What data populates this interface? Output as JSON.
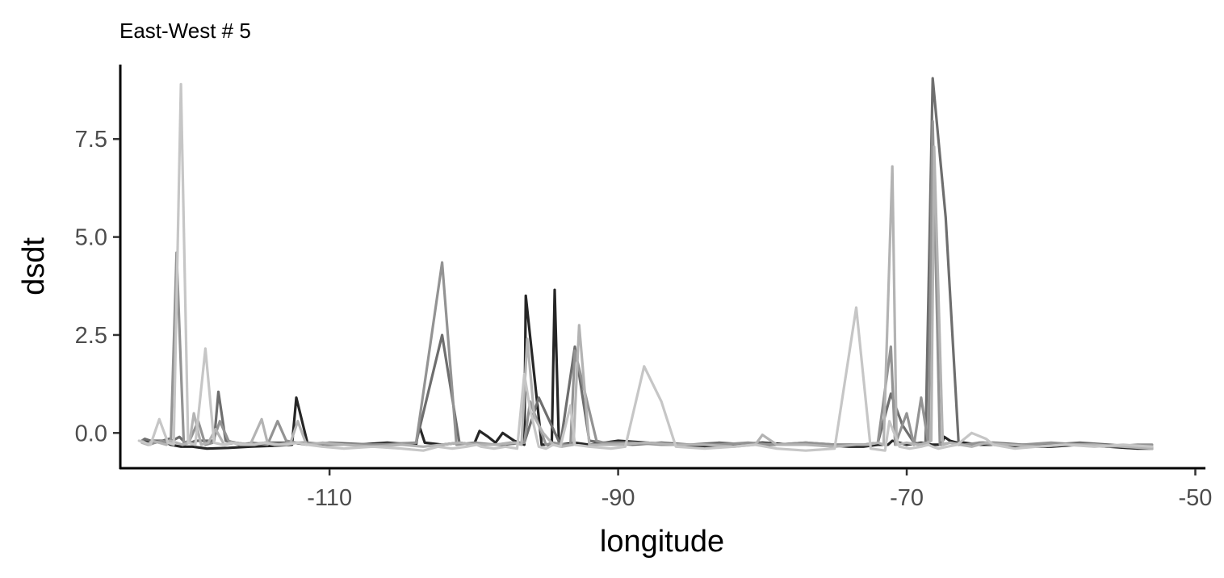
{
  "chart_data": {
    "type": "line",
    "title": "East-West # 5",
    "xlabel": "longitude",
    "ylabel": "dsdt",
    "xlim": [
      -124.5,
      -49.3
    ],
    "ylim": [
      -0.9,
      9.4
    ],
    "xticks": [
      -110,
      -90,
      -70,
      -50
    ],
    "yticks": [
      0.0,
      2.5,
      5.0,
      7.5
    ],
    "xtick_labels": [
      "-110",
      "-90",
      "-70",
      "-50"
    ],
    "ytick_labels": [
      "0.0",
      "2.5",
      "5.0",
      "7.5"
    ],
    "grid": false,
    "legend": "none",
    "series": [
      {
        "color": "#262626",
        "x": [
          -123,
          -122.5,
          -121.6,
          -121,
          -120.3,
          -119.5,
          -118.5,
          -117,
          -115.5,
          -114,
          -112.6,
          -112.3,
          -111.5,
          -110,
          -108,
          -106,
          -104,
          -103.8,
          -103.4,
          -102.2,
          -101,
          -100,
          -99.6,
          -99,
          -98.5,
          -98,
          -97.2,
          -96.5,
          -96.4,
          -95.3,
          -94.6,
          -94.4,
          -94.1,
          -93,
          -92,
          -90,
          -88,
          -86,
          -84,
          -82,
          -80,
          -78,
          -76,
          -74,
          -73,
          -72,
          -71.3,
          -71,
          -70.5,
          -70,
          -69,
          -68.2,
          -67.6,
          -67.4,
          -67,
          -66.5,
          -66,
          -65,
          -64,
          -62,
          -60,
          -58,
          -56,
          -54,
          -53
        ],
        "y": [
          -0.2,
          -0.25,
          -0.2,
          -0.3,
          -0.35,
          -0.35,
          -0.4,
          -0.38,
          -0.35,
          -0.33,
          -0.3,
          0.9,
          -0.3,
          -0.3,
          -0.3,
          -0.25,
          -0.3,
          0.2,
          -0.25,
          -0.3,
          -0.25,
          -0.3,
          0.05,
          -0.1,
          -0.25,
          0.0,
          -0.2,
          -0.3,
          3.5,
          -0.3,
          -0.3,
          3.65,
          -0.3,
          -0.25,
          -0.3,
          -0.2,
          -0.25,
          -0.3,
          -0.35,
          -0.3,
          -0.25,
          -0.3,
          -0.3,
          -0.35,
          -0.35,
          -0.3,
          -0.3,
          -0.2,
          -0.25,
          -0.3,
          -0.25,
          -0.3,
          -0.3,
          -0.1,
          -0.2,
          -0.25,
          -0.25,
          -0.3,
          -0.3,
          -0.35,
          -0.35,
          -0.3,
          -0.35,
          -0.4,
          -0.4
        ]
      },
      {
        "color": "#6e6e6e",
        "x": [
          -123,
          -122.8,
          -122.4,
          -121.6,
          -121.1,
          -120.9,
          -120.4,
          -120,
          -119.6,
          -119.3,
          -118.6,
          -118,
          -117.7,
          -117.2,
          -116.5,
          -115.5,
          -114.5,
          -113.7,
          -112.5,
          -111.5,
          -110,
          -107,
          -104,
          -102.2,
          -101,
          -100,
          -98,
          -96.5,
          -95.5,
          -94,
          -93,
          -92,
          -91,
          -89,
          -87,
          -85,
          -83,
          -81,
          -79,
          -77,
          -75,
          -73,
          -72,
          -71.1,
          -70.3,
          -69.5,
          -68.7,
          -68.2,
          -67.3,
          -66.4,
          -65.5,
          -65,
          -64,
          -62,
          -60,
          -58,
          -56,
          -54,
          -53
        ],
        "y": [
          -0.2,
          -0.15,
          -0.2,
          -0.2,
          -0.15,
          -0.2,
          -0.1,
          -0.25,
          -0.25,
          -0.2,
          -0.2,
          -0.2,
          1.05,
          -0.2,
          -0.25,
          -0.3,
          -0.25,
          -0.25,
          -0.25,
          -0.3,
          -0.25,
          -0.3,
          -0.25,
          2.5,
          -0.25,
          -0.3,
          -0.3,
          -0.25,
          0.9,
          -0.3,
          2.2,
          -0.2,
          -0.25,
          -0.3,
          -0.25,
          -0.3,
          -0.25,
          -0.3,
          -0.3,
          -0.25,
          -0.3,
          -0.3,
          -0.25,
          1.0,
          0.2,
          -0.25,
          -0.3,
          9.05,
          5.5,
          -0.3,
          -0.3,
          -0.25,
          -0.25,
          -0.3,
          -0.3,
          -0.25,
          -0.3,
          -0.35,
          -0.35
        ]
      },
      {
        "color": "#939393",
        "x": [
          -123,
          -122.5,
          -122.1,
          -121.6,
          -121.2,
          -121,
          -120.6,
          -120.1,
          -119.7,
          -119.1,
          -118.6,
          -118.1,
          -117.6,
          -117,
          -116.3,
          -115.3,
          -114.3,
          -113.6,
          -113,
          -112.3,
          -111.5,
          -110,
          -108,
          -106,
          -104,
          -102.2,
          -101.2,
          -100,
          -98.5,
          -97.5,
          -96.5,
          -96.1,
          -95,
          -94.5,
          -93.7,
          -93.3,
          -93,
          -91.5,
          -91,
          -89,
          -87,
          -85,
          -83,
          -81,
          -79,
          -77,
          -75,
          -73,
          -72,
          -71.1,
          -70.8,
          -70,
          -69.5,
          -69,
          -68.5,
          -68.2,
          -67.7,
          -67,
          -66,
          -65,
          -64,
          -62,
          -60,
          -58,
          -56,
          -54,
          -53
        ],
        "y": [
          -0.2,
          -0.3,
          -0.25,
          -0.2,
          -0.25,
          -0.2,
          4.6,
          -0.25,
          -0.2,
          0.3,
          -0.3,
          -0.25,
          0.3,
          -0.2,
          -0.3,
          -0.25,
          -0.3,
          0.3,
          -0.2,
          -0.25,
          -0.25,
          -0.3,
          -0.3,
          -0.3,
          -0.25,
          4.35,
          -0.3,
          -0.25,
          -0.3,
          -0.25,
          -0.25,
          0.8,
          -0.3,
          -0.25,
          -0.3,
          -0.3,
          2.1,
          -0.2,
          -0.25,
          -0.25,
          -0.3,
          -0.3,
          -0.3,
          -0.25,
          -0.3,
          -0.25,
          -0.3,
          -0.3,
          -0.25,
          2.2,
          -0.3,
          0.5,
          -0.3,
          0.9,
          -0.3,
          7.95,
          -0.3,
          -0.25,
          -0.3,
          -0.25,
          -0.3,
          -0.3,
          -0.25,
          -0.3,
          -0.35,
          -0.3,
          -0.3
        ]
      },
      {
        "color": "#b3b3b3",
        "x": [
          -123,
          -122.6,
          -122.3,
          -121.8,
          -121.3,
          -121.1,
          -120.6,
          -120.2,
          -119.7,
          -119.4,
          -118.9,
          -118.4,
          -117.9,
          -117.3,
          -116.5,
          -115.5,
          -114.7,
          -114.3,
          -113.5,
          -112.7,
          -112.2,
          -111.6,
          -110.5,
          -109,
          -107,
          -105,
          -103.5,
          -102.2,
          -101,
          -100,
          -98.5,
          -97.2,
          -96.7,
          -96.3,
          -95.8,
          -95.2,
          -94.5,
          -93.9,
          -93.1,
          -92.7,
          -92,
          -90,
          -88,
          -86,
          -84,
          -82,
          -80.5,
          -80,
          -79,
          -77,
          -75,
          -73.5,
          -72.7,
          -72,
          -71.6,
          -71,
          -70.7,
          -70,
          -69.2,
          -68.6,
          -68.3,
          -68.1,
          -67.5,
          -67,
          -66.3,
          -65.5,
          -64.5,
          -63,
          -61,
          -59,
          -57,
          -55,
          -53
        ],
        "y": [
          -0.25,
          -0.3,
          -0.2,
          -0.25,
          -0.3,
          -0.2,
          -0.25,
          -0.3,
          -0.25,
          0.5,
          -0.3,
          -0.25,
          0.1,
          -0.3,
          -0.25,
          -0.3,
          0.35,
          -0.25,
          -0.3,
          -0.25,
          0.3,
          -0.3,
          -0.25,
          -0.3,
          -0.35,
          -0.3,
          -0.35,
          -0.3,
          -0.25,
          -0.3,
          -0.3,
          -0.25,
          -0.3,
          2.4,
          0.4,
          0.0,
          -0.3,
          -0.35,
          -0.3,
          2.75,
          -0.3,
          -0.3,
          -0.25,
          -0.3,
          -0.3,
          -0.35,
          -0.3,
          -0.05,
          -0.3,
          -0.3,
          -0.35,
          -0.3,
          -0.3,
          -0.25,
          -0.3,
          6.8,
          -0.3,
          -0.25,
          -0.3,
          -0.25,
          -0.2,
          7.3,
          -0.3,
          -0.25,
          -0.3,
          -0.35,
          -0.25,
          -0.3,
          -0.35,
          -0.3,
          -0.3,
          -0.35,
          -0.4
        ]
      },
      {
        "color": "#c6c6c6",
        "x": [
          -123.2,
          -122.8,
          -122.4,
          -121.8,
          -121.2,
          -120.8,
          -120.3,
          -119.8,
          -119.3,
          -118.6,
          -118,
          -117.4,
          -116.8,
          -116,
          -115.2,
          -114.5,
          -113.8,
          -113,
          -112.2,
          -111.5,
          -110.5,
          -109,
          -107,
          -105,
          -103.5,
          -102.5,
          -101.5,
          -100.5,
          -99.8,
          -99.5,
          -98.6,
          -97.8,
          -97,
          -96.5,
          -96.1,
          -95.5,
          -95,
          -94.5,
          -94,
          -93.3,
          -93,
          -92,
          -90.5,
          -89.5,
          -88.2,
          -87,
          -86,
          -84,
          -82,
          -80.5,
          -79,
          -77,
          -75,
          -73.5,
          -72.5,
          -71.5,
          -71.2,
          -70.5,
          -69.8,
          -69,
          -68.5,
          -68.2,
          -67.8,
          -67.2,
          -66.5,
          -65.5,
          -64.5,
          -64,
          -62.5,
          -61,
          -59,
          -57,
          -55,
          -53
        ],
        "y": [
          -0.2,
          -0.25,
          -0.3,
          0.35,
          -0.25,
          -0.3,
          8.9,
          -0.25,
          -0.3,
          2.15,
          -0.25,
          -0.3,
          -0.25,
          -0.3,
          -0.3,
          -0.25,
          -0.3,
          -0.3,
          -0.25,
          -0.3,
          -0.35,
          -0.4,
          -0.35,
          -0.4,
          -0.45,
          -0.35,
          -0.4,
          -0.35,
          -0.3,
          -0.35,
          -0.4,
          -0.35,
          -0.4,
          1.5,
          0.6,
          -0.35,
          -0.4,
          -0.3,
          -0.35,
          0.7,
          -0.3,
          -0.35,
          -0.4,
          -0.35,
          1.7,
          0.8,
          -0.35,
          -0.4,
          -0.35,
          -0.3,
          -0.4,
          -0.45,
          -0.4,
          3.2,
          -0.4,
          -0.45,
          0.3,
          -0.35,
          -0.4,
          -0.35,
          -0.3,
          -0.35,
          -0.4,
          -0.35,
          -0.3,
          0.0,
          -0.15,
          -0.3,
          -0.4,
          -0.35,
          -0.3,
          -0.35,
          -0.3,
          -0.35
        ]
      }
    ]
  }
}
